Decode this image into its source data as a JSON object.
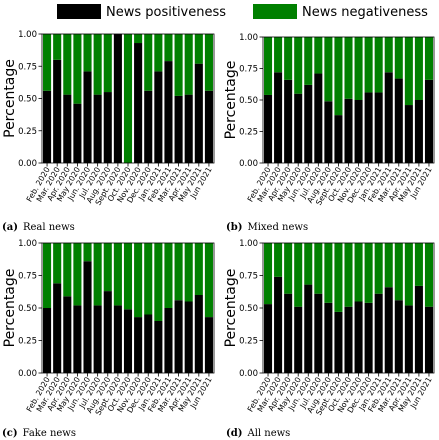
{
  "legend": {
    "placement": "top-center",
    "entries": [
      {
        "label": "News positiveness",
        "color": "#000000"
      },
      {
        "label": "News negativeness",
        "color": "#008000"
      }
    ]
  },
  "colors": {
    "positive": "#000000",
    "negative": "#008000"
  },
  "chart_data": [
    {
      "type": "bar",
      "stacked": true,
      "caption_label": "(a)",
      "caption_text": "Real news",
      "ylabel": "Percentage",
      "ylim": [
        0,
        1
      ],
      "yticks": [
        "0.00",
        "0.25",
        "0.50",
        "0.75",
        "1.00"
      ],
      "categories": [
        "Feb. 2020",
        "Mar. 2020",
        "Apr. 2020",
        "May 2020",
        "Jun. 2020",
        "Jul. 2020",
        "Aug. 2020",
        "Sept. 2020",
        "Oct. 2020",
        "Nov. 2020",
        "Dec. 2020",
        "Jan. 2021",
        "Feb. 2021",
        "Mar. 2021",
        "Apr. 2021",
        "May 2021",
        "Jun 2021"
      ],
      "series": [
        {
          "name": "News positiveness",
          "values": [
            0.56,
            0.8,
            0.53,
            0.46,
            0.71,
            0.53,
            0.55,
            1.0,
            0.0,
            0.93,
            0.56,
            0.71,
            0.79,
            0.52,
            0.53,
            0.77,
            0.56
          ]
        },
        {
          "name": "News negativeness",
          "values": [
            0.44,
            0.2,
            0.47,
            0.54,
            0.29,
            0.47,
            0.45,
            0.0,
            1.0,
            0.07,
            0.44,
            0.29,
            0.21,
            0.48,
            0.47,
            0.23,
            0.44
          ]
        }
      ]
    },
    {
      "type": "bar",
      "stacked": true,
      "caption_label": "(b)",
      "caption_text": "Mixed news",
      "ylabel": "Percentage",
      "ylim": [
        0,
        1
      ],
      "yticks": [
        "0.00",
        "0.25",
        "0.50",
        "0.75",
        "1.00"
      ],
      "categories": [
        "Feb. 2020",
        "Mar. 2020",
        "Apr. 2020",
        "May 2020",
        "Jun. 2020",
        "Jul. 2020",
        "Aug. 2020",
        "Sept. 2020",
        "Oct. 2020",
        "Nov. 2020",
        "Dec. 2020",
        "Jan. 2021",
        "Feb. 2021",
        "Mar. 2021",
        "Apr. 2021",
        "May 2021",
        "Jun 2021"
      ],
      "series": [
        {
          "name": "News positiveness",
          "values": [
            0.54,
            0.72,
            0.66,
            0.55,
            0.62,
            0.71,
            0.49,
            0.38,
            0.51,
            0.5,
            0.56,
            0.56,
            0.72,
            0.67,
            0.46,
            0.5,
            0.66
          ]
        },
        {
          "name": "News negativeness",
          "values": [
            0.46,
            0.28,
            0.34,
            0.45,
            0.38,
            0.29,
            0.51,
            0.62,
            0.49,
            0.5,
            0.44,
            0.44,
            0.28,
            0.33,
            0.54,
            0.5,
            0.34
          ]
        }
      ]
    },
    {
      "type": "bar",
      "stacked": true,
      "caption_label": "(c)",
      "caption_text": "Fake news",
      "ylabel": "Percentage",
      "ylim": [
        0,
        1
      ],
      "yticks": [
        "0.00",
        "0.25",
        "0.50",
        "0.75",
        "1.00"
      ],
      "categories": [
        "Feb. 2020",
        "Mar. 2020",
        "Apr. 2020",
        "May 2020",
        "Jun. 2020",
        "Jul. 2020",
        "Aug. 2020",
        "Sept. 2020",
        "Oct. 2020",
        "Nov. 2020",
        "Dec. 2020",
        "Jan. 2021",
        "Feb. 2021",
        "Mar. 2021",
        "Apr. 2021",
        "May 2021",
        "Jun 2021"
      ],
      "series": [
        {
          "name": "News positiveness",
          "values": [
            0.5,
            0.69,
            0.59,
            0.52,
            0.86,
            0.52,
            0.63,
            0.52,
            0.49,
            0.43,
            0.45,
            0.4,
            0.5,
            0.56,
            0.55,
            0.6,
            0.43
          ]
        },
        {
          "name": "News negativeness",
          "values": [
            0.5,
            0.31,
            0.41,
            0.48,
            0.14,
            0.48,
            0.37,
            0.48,
            0.51,
            0.57,
            0.55,
            0.6,
            0.5,
            0.44,
            0.45,
            0.4,
            0.57
          ]
        }
      ]
    },
    {
      "type": "bar",
      "stacked": true,
      "caption_label": "(d)",
      "caption_text": "All news",
      "ylabel": "Percentage",
      "ylim": [
        0,
        1
      ],
      "yticks": [
        "0.00",
        "0.25",
        "0.50",
        "0.75",
        "1.00"
      ],
      "categories": [
        "Feb. 2020",
        "Mar. 2020",
        "Apr. 2020",
        "May 2020",
        "Jun. 2020",
        "Jul. 2020",
        "Aug. 2020",
        "Sept. 2020",
        "Oct. 2020",
        "Nov. 2020",
        "Dec. 2020",
        "Jan. 2021",
        "Feb. 2021",
        "Mar. 2021",
        "Apr. 2021",
        "May 2021",
        "Jun 2021"
      ],
      "series": [
        {
          "name": "News positiveness",
          "values": [
            0.53,
            0.74,
            0.61,
            0.51,
            0.68,
            0.61,
            0.54,
            0.47,
            0.51,
            0.55,
            0.54,
            0.61,
            0.66,
            0.56,
            0.52,
            0.67,
            0.51
          ]
        },
        {
          "name": "News negativeness",
          "values": [
            0.47,
            0.26,
            0.39,
            0.49,
            0.32,
            0.39,
            0.46,
            0.53,
            0.49,
            0.45,
            0.46,
            0.39,
            0.34,
            0.44,
            0.48,
            0.33,
            0.49
          ]
        }
      ]
    }
  ]
}
